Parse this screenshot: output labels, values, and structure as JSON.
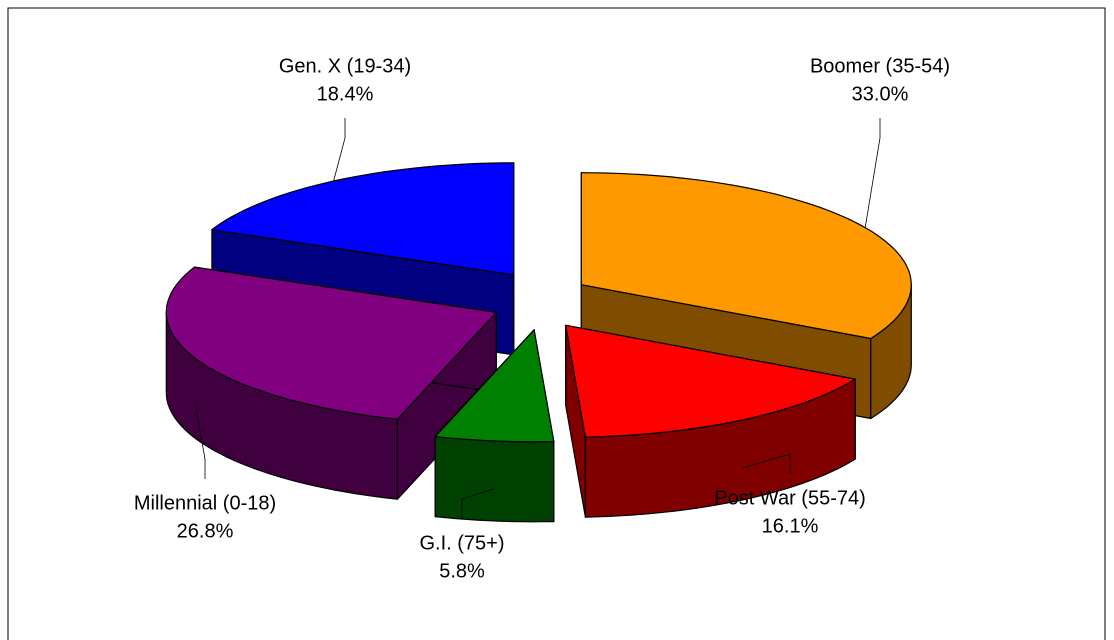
{
  "chart_data": {
    "type": "pie3d",
    "categories": [
      "Boomer (35-54)",
      "Post War (55-74)",
      "G.I. (75+)",
      "Millennial (0-18)",
      "Gen. X (19-34)"
    ],
    "values": [
      33.0,
      16.1,
      5.8,
      26.8,
      18.4
    ],
    "value_labels": [
      "33.0%",
      "16.1%",
      "5.8%",
      "26.8%",
      "18.4%"
    ],
    "colors": [
      "#ff9900",
      "#ff0000",
      "#008000",
      "#800080",
      "#0000ff"
    ]
  }
}
